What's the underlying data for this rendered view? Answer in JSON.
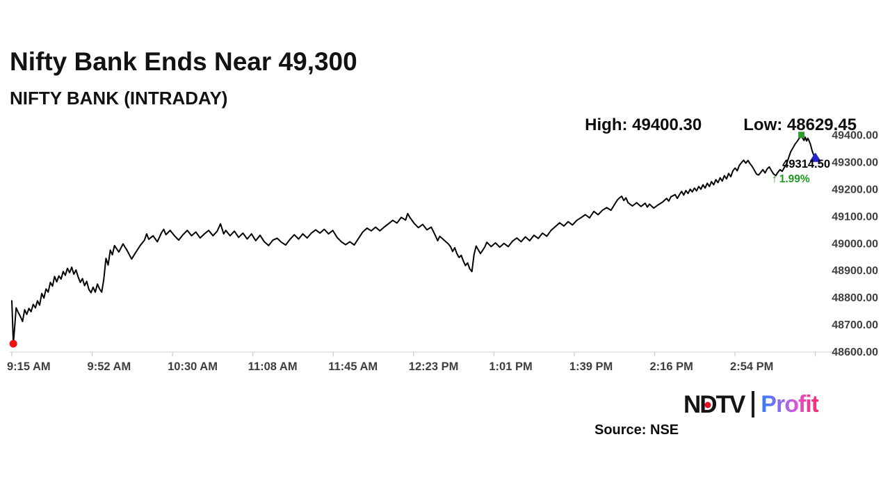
{
  "header": {
    "title": "Nifty Bank Ends Near 49,300",
    "subtitle": "NIFTY BANK (INTRADAY)"
  },
  "stats": {
    "high_label": "High: 49400.30",
    "low_label": "Low: 48629.45"
  },
  "last_price": {
    "value": "49314.50",
    "arrow": "↑",
    "change_pct": "1.99%"
  },
  "footer": {
    "source": "Source: NSE",
    "logo": {
      "n": "N",
      "d": "D",
      "tv": "TV",
      "profit": "Profit"
    }
  },
  "colors": {
    "line": "#000000",
    "axis_line": "#d9d9d9",
    "tick": "#cfcfcf",
    "axis_label": "#3e3e3e",
    "low_marker_red": "#ee1313",
    "high_marker_green": "#2e9b2e",
    "close_marker_blue": "#2727cd",
    "change_green": "#1f9b1f",
    "profit_gradient": [
      "#2f7df6",
      "#8f6cee",
      "#f5399b",
      "#f42e6f"
    ]
  },
  "chart_data": {
    "type": "line",
    "title": "NIFTY BANK (INTRADAY)",
    "xlabel": "",
    "ylabel": "",
    "grid": false,
    "legend": "none",
    "high": 49400.3,
    "low": 48629.45,
    "close": 49314.5,
    "change_pct": 1.99,
    "x_axis": {
      "labels": [
        "9:15 AM",
        "9:52 AM",
        "10:30 AM",
        "11:08 AM",
        "11:45 AM",
        "12:23 PM",
        "1:01 PM",
        "1:39 PM",
        "2:16 PM",
        "2:54 PM"
      ],
      "range_minutes": [
        0,
        375.5
      ],
      "tick_interval_minutes": 37.5,
      "tick_count": 11
    },
    "y_axis": {
      "labels": [
        "49400.00",
        "49300.00",
        "49200.00",
        "49100.00",
        "49000.00",
        "48900.00",
        "48800.00",
        "48700.00",
        "48600.00"
      ],
      "min": 48600,
      "max": 49400
    },
    "markers": [
      {
        "name": "low-marker",
        "shape": "circle",
        "color": "#ee1313",
        "minute": 0.7,
        "value": 48629.45
      },
      {
        "name": "high-marker",
        "shape": "square",
        "color": "#2e9b2e",
        "minute": 369,
        "value": 49400.3
      },
      {
        "name": "close-marker",
        "shape": "triangle",
        "color": "#2727cd",
        "minute": 375.5,
        "value": 49314.5
      }
    ],
    "points": [
      [
        0,
        48788
      ],
      [
        0.7,
        48629.45
      ],
      [
        1.5,
        48708
      ],
      [
        2,
        48762
      ],
      [
        3,
        48745
      ],
      [
        4,
        48730
      ],
      [
        5,
        48712
      ],
      [
        6,
        48755
      ],
      [
        7,
        48738
      ],
      [
        8,
        48760
      ],
      [
        9,
        48748
      ],
      [
        10,
        48775
      ],
      [
        11,
        48762
      ],
      [
        12,
        48788
      ],
      [
        13,
        48772
      ],
      [
        14,
        48815
      ],
      [
        15,
        48798
      ],
      [
        16,
        48832
      ],
      [
        17,
        48820
      ],
      [
        18,
        48856
      ],
      [
        19,
        48842
      ],
      [
        20,
        48878
      ],
      [
        21,
        48858
      ],
      [
        22,
        48880
      ],
      [
        23,
        48868
      ],
      [
        24,
        48896
      ],
      [
        25,
        48882
      ],
      [
        26,
        48908
      ],
      [
        27,
        48892
      ],
      [
        28,
        48912
      ],
      [
        29,
        48886
      ],
      [
        30,
        48902
      ],
      [
        31,
        48876
      ],
      [
        32,
        48856
      ],
      [
        33,
        48870
      ],
      [
        34,
        48844
      ],
      [
        35,
        48860
      ],
      [
        36,
        48830
      ],
      [
        37,
        48818
      ],
      [
        38,
        48838
      ],
      [
        39,
        48820
      ],
      [
        40,
        48850
      ],
      [
        41,
        48832
      ],
      [
        42,
        48820
      ],
      [
        43,
        48868
      ],
      [
        44,
        48945
      ],
      [
        45,
        48920
      ],
      [
        46,
        48975
      ],
      [
        47,
        48958
      ],
      [
        48,
        48992
      ],
      [
        50,
        48968
      ],
      [
        52,
        48998
      ],
      [
        54,
        48972
      ],
      [
        56,
        48942
      ],
      [
        58,
        48968
      ],
      [
        60,
        48992
      ],
      [
        62,
        49012
      ],
      [
        63,
        49035
      ],
      [
        64,
        49015
      ],
      [
        66,
        49028
      ],
      [
        68,
        49006
      ],
      [
        70,
        49040
      ],
      [
        71,
        49052
      ],
      [
        72,
        49032
      ],
      [
        74,
        49048
      ],
      [
        76,
        49028
      ],
      [
        78,
        49012
      ],
      [
        80,
        49032
      ],
      [
        82,
        49048
      ],
      [
        84,
        49028
      ],
      [
        86,
        49042
      ],
      [
        88,
        49020
      ],
      [
        90,
        49035
      ],
      [
        92,
        49048
      ],
      [
        94,
        49028
      ],
      [
        96,
        49045
      ],
      [
        97.5,
        49072
      ],
      [
        99,
        49035
      ],
      [
        100,
        49048
      ],
      [
        102,
        49028
      ],
      [
        104,
        49045
      ],
      [
        106,
        49022
      ],
      [
        108,
        49038
      ],
      [
        110,
        49016
      ],
      [
        112,
        49035
      ],
      [
        114,
        49010
      ],
      [
        116,
        49030
      ],
      [
        118,
        49006
      ],
      [
        120,
        48992
      ],
      [
        122,
        49012
      ],
      [
        124,
        49019
      ],
      [
        126,
        49004
      ],
      [
        128,
        48994
      ],
      [
        130,
        49015
      ],
      [
        132,
        49032
      ],
      [
        134,
        49016
      ],
      [
        136,
        49035
      ],
      [
        138,
        49020
      ],
      [
        140,
        49038
      ],
      [
        142,
        49050
      ],
      [
        144,
        49038
      ],
      [
        146,
        49052
      ],
      [
        148,
        49035
      ],
      [
        150,
        49048
      ],
      [
        152,
        49022
      ],
      [
        154,
        49006
      ],
      [
        156,
        48995
      ],
      [
        158,
        49006
      ],
      [
        160,
        48994
      ],
      [
        162,
        49018
      ],
      [
        164,
        49042
      ],
      [
        166,
        49056
      ],
      [
        168,
        49046
      ],
      [
        170,
        49060
      ],
      [
        172,
        49046
      ],
      [
        174,
        49060
      ],
      [
        176,
        49072
      ],
      [
        178,
        49085
      ],
      [
        180,
        49075
      ],
      [
        182,
        49096
      ],
      [
        184,
        49086
      ],
      [
        185,
        49110
      ],
      [
        186,
        49096
      ],
      [
        188,
        49074
      ],
      [
        190,
        49058
      ],
      [
        192,
        49070
      ],
      [
        194,
        49050
      ],
      [
        196,
        49060
      ],
      [
        198,
        49028
      ],
      [
        199,
        49010
      ],
      [
        200,
        49026
      ],
      [
        202,
        49012
      ],
      [
        204,
        48998
      ],
      [
        205,
        48988
      ],
      [
        206,
        48970
      ],
      [
        207,
        48984
      ],
      [
        208,
        48962
      ],
      [
        209,
        48948
      ],
      [
        210,
        48956
      ],
      [
        211,
        48935
      ],
      [
        212,
        48918
      ],
      [
        213,
        48928
      ],
      [
        214,
        48906
      ],
      [
        215,
        48896
      ],
      [
        216,
        48958
      ],
      [
        217,
        48990
      ],
      [
        219,
        48962
      ],
      [
        221,
        48986
      ],
      [
        222,
        49004
      ],
      [
        224,
        48988
      ],
      [
        226,
        49002
      ],
      [
        228,
        48986
      ],
      [
        230,
        49000
      ],
      [
        232,
        48988
      ],
      [
        234,
        49008
      ],
      [
        236,
        49020
      ],
      [
        238,
        49006
      ],
      [
        240,
        49024
      ],
      [
        242,
        49010
      ],
      [
        244,
        49030
      ],
      [
        246,
        49018
      ],
      [
        248,
        49038
      ],
      [
        250,
        49026
      ],
      [
        252,
        49048
      ],
      [
        254,
        49062
      ],
      [
        256,
        49076
      ],
      [
        258,
        49064
      ],
      [
        260,
        49080
      ],
      [
        262,
        49068
      ],
      [
        264,
        49085
      ],
      [
        266,
        49095
      ],
      [
        268,
        49106
      ],
      [
        270,
        49094
      ],
      [
        272,
        49118
      ],
      [
        274,
        49106
      ],
      [
        276,
        49122
      ],
      [
        278,
        49132
      ],
      [
        280,
        49122
      ],
      [
        282,
        49148
      ],
      [
        283,
        49160
      ],
      [
        284,
        49168
      ],
      [
        285,
        49174
      ],
      [
        286,
        49158
      ],
      [
        287,
        49168
      ],
      [
        288,
        49150
      ],
      [
        290,
        49138
      ],
      [
        292,
        49150
      ],
      [
        294,
        49136
      ],
      [
        296,
        49148
      ],
      [
        297,
        49134
      ],
      [
        298,
        49145
      ],
      [
        300,
        49130
      ],
      [
        302,
        49142
      ],
      [
        304,
        49152
      ],
      [
        306,
        49166
      ],
      [
        307,
        49156
      ],
      [
        308,
        49172
      ],
      [
        310,
        49180
      ],
      [
        311,
        49166
      ],
      [
        312,
        49180
      ],
      [
        313,
        49192
      ],
      [
        314,
        49178
      ],
      [
        315,
        49195
      ],
      [
        316,
        49184
      ],
      [
        317,
        49200
      ],
      [
        318,
        49190
      ],
      [
        319,
        49204
      ],
      [
        320,
        49194
      ],
      [
        321,
        49210
      ],
      [
        322,
        49200
      ],
      [
        323,
        49216
      ],
      [
        324,
        49204
      ],
      [
        325,
        49222
      ],
      [
        326,
        49210
      ],
      [
        327,
        49228
      ],
      [
        328,
        49216
      ],
      [
        329,
        49235
      ],
      [
        330,
        49224
      ],
      [
        331,
        49242
      ],
      [
        332,
        49230
      ],
      [
        333,
        49250
      ],
      [
        334,
        49238
      ],
      [
        335,
        49258
      ],
      [
        336,
        49246
      ],
      [
        337,
        49268
      ],
      [
        338,
        49278
      ],
      [
        339,
        49268
      ],
      [
        340,
        49288
      ],
      [
        341,
        49298
      ],
      [
        342,
        49307
      ],
      [
        343,
        49296
      ],
      [
        344,
        49306
      ],
      [
        345,
        49294
      ],
      [
        346,
        49284
      ],
      [
        347,
        49270
      ],
      [
        348,
        49256
      ],
      [
        349,
        49252
      ],
      [
        350,
        49262
      ],
      [
        351,
        49272
      ],
      [
        352,
        49260
      ],
      [
        353,
        49275
      ],
      [
        354,
        49282
      ],
      [
        355,
        49268
      ],
      [
        356,
        49256
      ],
      [
        357,
        49250
      ],
      [
        358,
        49262
      ],
      [
        359,
        49272
      ],
      [
        360,
        49266
      ],
      [
        361,
        49280
      ],
      [
        362,
        49292
      ],
      [
        363,
        49315
      ],
      [
        364,
        49338
      ],
      [
        365,
        49352
      ],
      [
        366,
        49366
      ],
      [
        367,
        49376
      ],
      [
        368,
        49388
      ],
      [
        369,
        49400.3
      ],
      [
        369.6,
        49388
      ],
      [
        370.2,
        49380
      ],
      [
        370.8,
        49392
      ],
      [
        371.4,
        49378
      ],
      [
        372,
        49388
      ],
      [
        372.6,
        49378
      ],
      [
        373.2,
        49366
      ],
      [
        374,
        49342
      ],
      [
        375,
        49320
      ],
      [
        375.5,
        49314.5
      ]
    ]
  }
}
